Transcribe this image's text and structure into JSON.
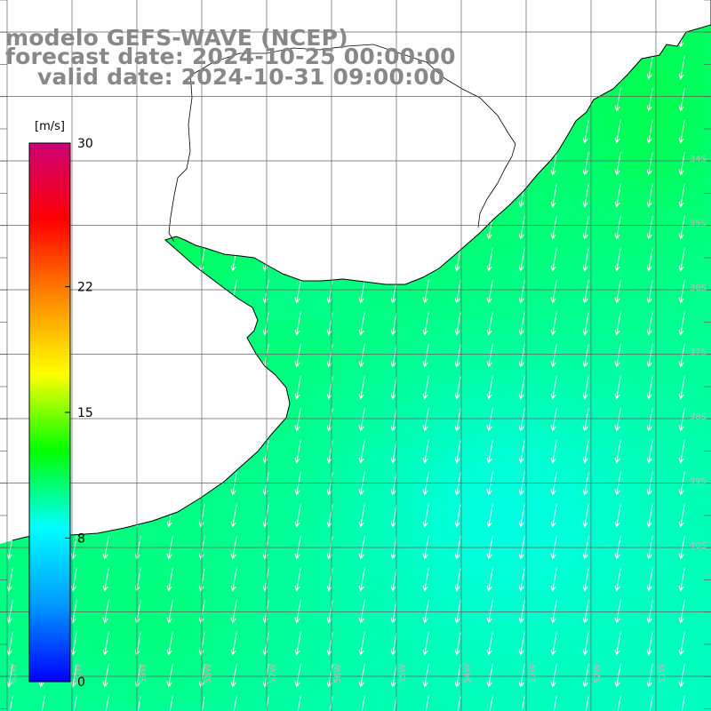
{
  "header": {
    "line1": "modelo GEFS-WAVE (NCEP)",
    "line2": "forecast date: 2024-10-25 00:00:00",
    "line3": "valid date: 2024-10-31 09:00:00"
  },
  "colorbar": {
    "unit": "[m/s]",
    "tick_labels": [
      "30",
      "22",
      "15",
      "8",
      "0"
    ],
    "tick_values": [
      30,
      22,
      15,
      8,
      0
    ],
    "range": [
      0,
      30
    ],
    "palette": [
      "#0000ff",
      "#0099ff",
      "#00ffff",
      "#00ff00",
      "#ffff00",
      "#ff8800",
      "#ff0000",
      "#cc0077"
    ]
  },
  "map": {
    "variable": "wind speed",
    "lon_labels": [
      "61W",
      "60W",
      "59W",
      "58W",
      "57W",
      "56W",
      "55W",
      "54W",
      "53W",
      "52W",
      "51W"
    ],
    "lat_labels": [
      "34S",
      "35S",
      "36S",
      "37S",
      "38S",
      "39S",
      "40S"
    ],
    "colors": {
      "land": "#ffffff",
      "coast": "#000000",
      "grid": "#606060",
      "arrow": "#ffffff",
      "label": "#bbbbbb"
    },
    "wind_direction": "toward south-southwest",
    "speed_range_ms": [
      8,
      12
    ]
  }
}
